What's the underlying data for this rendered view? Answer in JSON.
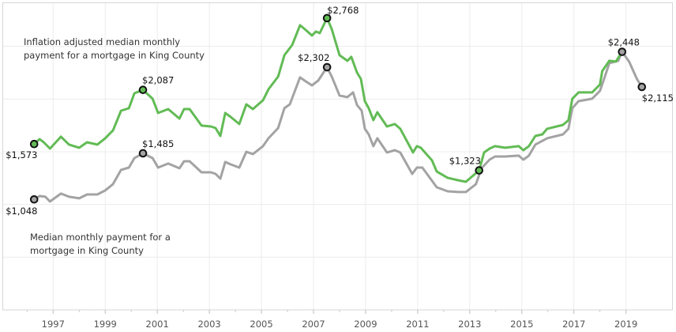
{
  "chart_data": {
    "type": "line",
    "title": "",
    "xlabel": "",
    "ylabel": "",
    "xlim": [
      1995.05,
      2020.8
    ],
    "ylim": [
      0,
      2917
    ],
    "grid": true,
    "x_ticks": [
      "1997",
      "1999",
      "2001",
      "2003",
      "2005",
      "2007",
      "2009",
      "2011",
      "2013",
      "2015",
      "2017",
      "2019"
    ],
    "y_gridlines": [
      500,
      1000,
      1500,
      2000,
      2500
    ],
    "series": [
      {
        "name_lines": [
          "Inflation adjusted median monthly",
          "payment for a mortgage in King County"
        ],
        "color": "#62bb55",
        "points": [
          [
            1996.27,
            1573
          ],
          [
            1996.48,
            1620
          ],
          [
            1996.64,
            1590
          ],
          [
            1996.88,
            1530
          ],
          [
            1997.3,
            1643
          ],
          [
            1997.61,
            1568
          ],
          [
            1998.0,
            1538
          ],
          [
            1998.3,
            1590
          ],
          [
            1998.7,
            1568
          ],
          [
            1999.0,
            1628
          ],
          [
            1999.3,
            1703
          ],
          [
            1999.61,
            1890
          ],
          [
            1999.91,
            1913
          ],
          [
            2000.12,
            2055
          ],
          [
            2000.45,
            2087
          ],
          [
            2000.82,
            2003
          ],
          [
            2001.03,
            1868
          ],
          [
            2001.42,
            1905
          ],
          [
            2001.85,
            1815
          ],
          [
            2002.03,
            1905
          ],
          [
            2002.24,
            1905
          ],
          [
            2002.7,
            1748
          ],
          [
            2003.06,
            1740
          ],
          [
            2003.24,
            1725
          ],
          [
            2003.42,
            1650
          ],
          [
            2003.61,
            1868
          ],
          [
            2003.82,
            1830
          ],
          [
            2004.15,
            1763
          ],
          [
            2004.42,
            1950
          ],
          [
            2004.67,
            1905
          ],
          [
            2005.06,
            1988
          ],
          [
            2005.27,
            2093
          ],
          [
            2005.64,
            2213
          ],
          [
            2005.88,
            2415
          ],
          [
            2006.18,
            2513
          ],
          [
            2006.48,
            2700
          ],
          [
            2006.7,
            2655
          ],
          [
            2006.94,
            2603
          ],
          [
            2007.09,
            2640
          ],
          [
            2007.24,
            2625
          ],
          [
            2007.52,
            2768
          ],
          [
            2007.7,
            2663
          ],
          [
            2008.0,
            2415
          ],
          [
            2008.3,
            2363
          ],
          [
            2008.45,
            2400
          ],
          [
            2008.67,
            2250
          ],
          [
            2008.82,
            2190
          ],
          [
            2008.97,
            1980
          ],
          [
            2009.12,
            1913
          ],
          [
            2009.3,
            1800
          ],
          [
            2009.45,
            1875
          ],
          [
            2009.82,
            1740
          ],
          [
            2010.12,
            1763
          ],
          [
            2010.33,
            1718
          ],
          [
            2010.82,
            1493
          ],
          [
            2010.97,
            1553
          ],
          [
            2011.12,
            1538
          ],
          [
            2011.55,
            1418
          ],
          [
            2011.73,
            1313
          ],
          [
            2012.15,
            1253
          ],
          [
            2012.55,
            1230
          ],
          [
            2012.85,
            1215
          ],
          [
            2013.36,
            1323
          ],
          [
            2013.55,
            1493
          ],
          [
            2013.76,
            1530
          ],
          [
            2013.97,
            1553
          ],
          [
            2014.36,
            1538
          ],
          [
            2014.88,
            1553
          ],
          [
            2015.06,
            1515
          ],
          [
            2015.27,
            1553
          ],
          [
            2015.52,
            1650
          ],
          [
            2015.79,
            1665
          ],
          [
            2015.97,
            1718
          ],
          [
            2016.58,
            1755
          ],
          [
            2016.79,
            1800
          ],
          [
            2016.94,
            2003
          ],
          [
            2017.18,
            2063
          ],
          [
            2017.7,
            2063
          ],
          [
            2018.0,
            2138
          ],
          [
            2018.09,
            2265
          ],
          [
            2018.36,
            2363
          ],
          [
            2018.61,
            2355
          ],
          [
            2018.85,
            2448
          ]
        ]
      },
      {
        "name_lines": [
          "Median monthly payment for a",
          "mortgage in King County"
        ],
        "color": "#a3a3a3",
        "points": [
          [
            1996.27,
            1048
          ],
          [
            1996.48,
            1080
          ],
          [
            1996.7,
            1073
          ],
          [
            1996.88,
            1028
          ],
          [
            1997.3,
            1103
          ],
          [
            1997.61,
            1073
          ],
          [
            1998.0,
            1058
          ],
          [
            1998.3,
            1095
          ],
          [
            1998.7,
            1095
          ],
          [
            1999.0,
            1133
          ],
          [
            1999.3,
            1193
          ],
          [
            1999.61,
            1328
          ],
          [
            1999.91,
            1350
          ],
          [
            2000.12,
            1440
          ],
          [
            2000.45,
            1485
          ],
          [
            2000.82,
            1440
          ],
          [
            2001.03,
            1350
          ],
          [
            2001.42,
            1388
          ],
          [
            2001.85,
            1343
          ],
          [
            2002.03,
            1410
          ],
          [
            2002.24,
            1410
          ],
          [
            2002.7,
            1305
          ],
          [
            2003.06,
            1305
          ],
          [
            2003.24,
            1290
          ],
          [
            2003.42,
            1245
          ],
          [
            2003.61,
            1403
          ],
          [
            2003.82,
            1380
          ],
          [
            2004.15,
            1350
          ],
          [
            2004.42,
            1500
          ],
          [
            2004.67,
            1478
          ],
          [
            2005.06,
            1553
          ],
          [
            2005.27,
            1628
          ],
          [
            2005.64,
            1725
          ],
          [
            2005.88,
            1913
          ],
          [
            2006.09,
            1950
          ],
          [
            2006.48,
            2205
          ],
          [
            2006.7,
            2168
          ],
          [
            2006.94,
            2130
          ],
          [
            2007.18,
            2175
          ],
          [
            2007.52,
            2302
          ],
          [
            2007.7,
            2213
          ],
          [
            2008.0,
            2033
          ],
          [
            2008.3,
            2018
          ],
          [
            2008.52,
            2063
          ],
          [
            2008.67,
            1943
          ],
          [
            2008.85,
            1890
          ],
          [
            2008.97,
            1718
          ],
          [
            2009.12,
            1665
          ],
          [
            2009.3,
            1553
          ],
          [
            2009.45,
            1628
          ],
          [
            2009.82,
            1493
          ],
          [
            2010.12,
            1515
          ],
          [
            2010.33,
            1493
          ],
          [
            2010.79,
            1290
          ],
          [
            2010.97,
            1350
          ],
          [
            2011.18,
            1350
          ],
          [
            2011.58,
            1215
          ],
          [
            2011.73,
            1163
          ],
          [
            2012.15,
            1125
          ],
          [
            2012.55,
            1118
          ],
          [
            2012.85,
            1118
          ],
          [
            2013.24,
            1193
          ],
          [
            2013.45,
            1343
          ],
          [
            2013.76,
            1425
          ],
          [
            2013.97,
            1455
          ],
          [
            2014.36,
            1455
          ],
          [
            2014.88,
            1463
          ],
          [
            2015.06,
            1425
          ],
          [
            2015.27,
            1463
          ],
          [
            2015.52,
            1568
          ],
          [
            2015.97,
            1628
          ],
          [
            2016.58,
            1665
          ],
          [
            2016.79,
            1718
          ],
          [
            2016.94,
            1913
          ],
          [
            2017.18,
            1980
          ],
          [
            2017.7,
            2003
          ],
          [
            2018.0,
            2078
          ],
          [
            2018.21,
            2228
          ],
          [
            2018.36,
            2340
          ],
          [
            2018.7,
            2363
          ],
          [
            2018.85,
            2448
          ],
          [
            2019.12,
            2355
          ],
          [
            2019.42,
            2190
          ],
          [
            2019.61,
            2115
          ]
        ]
      }
    ],
    "annotations": [
      {
        "series": 0,
        "x": 1996.27,
        "y": 1573,
        "label": "$1,573"
      },
      {
        "series": 0,
        "x": 2000.45,
        "y": 2087,
        "label": "$2,087"
      },
      {
        "series": 0,
        "x": 2007.52,
        "y": 2768,
        "label": "$2,768"
      },
      {
        "series": 0,
        "x": 2013.36,
        "y": 1323,
        "label": "$1,323"
      },
      {
        "series": 1,
        "x": 2018.85,
        "y": 2448,
        "label": "$2,448"
      },
      {
        "series": 1,
        "x": 1996.27,
        "y": 1048,
        "label": "$1,048"
      },
      {
        "series": 1,
        "x": 2000.45,
        "y": 1485,
        "label": "$1,485"
      },
      {
        "series": 1,
        "x": 2007.52,
        "y": 2302,
        "label": "$2,302"
      },
      {
        "series": 1,
        "x": 2019.61,
        "y": 2115,
        "label": "$2,115"
      }
    ]
  }
}
